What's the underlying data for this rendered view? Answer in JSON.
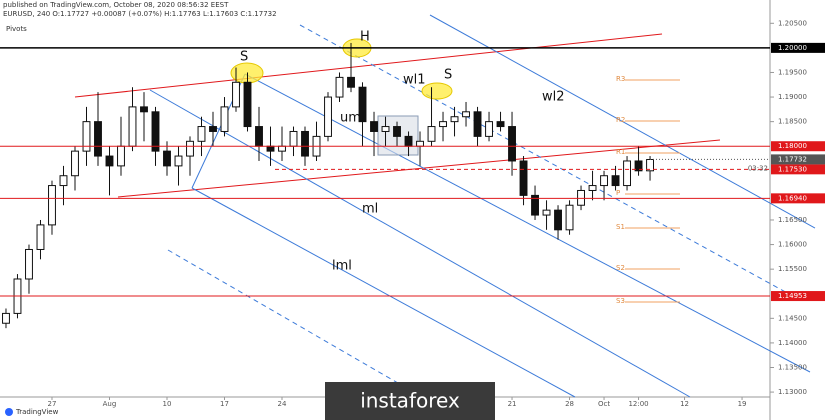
{
  "chart_data": {
    "type": "candlestick",
    "published": "published on TradingView.com, October 08, 2020 08:56:32 EEST",
    "symbol": "EURUSD, 240  O:1.17727 +0.00087 (+0.07%) H:1.17763 L:1.17603 C:1.17732",
    "pivots_label": "Pivots",
    "annotations": [
      "S",
      "H",
      "S",
      "wl1",
      "wl2",
      "uml",
      "ml",
      "lml"
    ],
    "pivot_names": [
      "R3",
      "R2",
      "R1",
      "P",
      "S1",
      "S2",
      "S3"
    ],
    "logo": "TradingView",
    "watermark": "instaforex",
    "countdown": "03:32",
    "open": [
      1.144,
      1.146,
      1.153,
      1.159,
      1.164,
      1.172,
      1.174,
      1.179,
      1.185,
      1.178,
      1.176,
      1.18,
      1.188,
      1.187,
      1.179,
      1.176,
      1.178,
      1.181,
      1.184,
      1.183,
      1.188,
      1.193,
      1.184,
      1.18,
      1.179,
      1.18,
      1.183,
      1.178,
      1.182,
      1.19,
      1.194,
      1.192,
      1.185,
      1.183,
      1.184,
      1.182,
      1.18,
      1.181,
      1.184,
      1.185,
      1.186,
      1.187,
      1.182,
      1.185,
      1.184,
      1.177,
      1.17,
      1.166,
      1.167,
      1.163,
      1.168,
      1.171,
      1.172,
      1.174,
      1.172,
      1.177,
      1.175
    ],
    "high": [
      1.147,
      1.154,
      1.16,
      1.165,
      1.173,
      1.176,
      1.18,
      1.188,
      1.191,
      1.18,
      1.186,
      1.192,
      1.191,
      1.188,
      1.181,
      1.18,
      1.182,
      1.186,
      1.187,
      1.19,
      1.196,
      1.195,
      1.188,
      1.184,
      1.184,
      1.184,
      1.184,
      1.185,
      1.191,
      1.195,
      1.201,
      1.193,
      1.187,
      1.186,
      1.185,
      1.183,
      1.183,
      1.192,
      1.187,
      1.188,
      1.189,
      1.188,
      1.187,
      1.187,
      1.187,
      1.178,
      1.172,
      1.169,
      1.168,
      1.169,
      1.172,
      1.175,
      1.175,
      1.176,
      1.178,
      1.18,
      1.178
    ],
    "low": [
      1.143,
      1.145,
      1.15,
      1.157,
      1.162,
      1.168,
      1.171,
      1.176,
      1.176,
      1.17,
      1.174,
      1.179,
      1.181,
      1.176,
      1.174,
      1.172,
      1.174,
      1.178,
      1.18,
      1.182,
      1.187,
      1.183,
      1.177,
      1.176,
      1.177,
      1.178,
      1.176,
      1.177,
      1.181,
      1.189,
      1.191,
      1.18,
      1.178,
      1.18,
      1.18,
      1.178,
      1.176,
      1.18,
      1.181,
      1.182,
      1.184,
      1.18,
      1.181,
      1.183,
      1.174,
      1.168,
      1.165,
      1.163,
      1.161,
      1.162,
      1.167,
      1.169,
      1.169,
      1.171,
      1.171,
      1.174,
      1.173
    ],
    "close": [
      1.146,
      1.153,
      1.159,
      1.164,
      1.172,
      1.174,
      1.179,
      1.185,
      1.178,
      1.176,
      1.18,
      1.188,
      1.187,
      1.179,
      1.176,
      1.178,
      1.181,
      1.184,
      1.183,
      1.188,
      1.193,
      1.184,
      1.18,
      1.179,
      1.18,
      1.183,
      1.178,
      1.182,
      1.19,
      1.194,
      1.192,
      1.185,
      1.183,
      1.184,
      1.182,
      1.18,
      1.181,
      1.184,
      1.185,
      1.186,
      1.187,
      1.182,
      1.185,
      1.184,
      1.177,
      1.17,
      1.166,
      1.167,
      1.163,
      1.168,
      1.171,
      1.172,
      1.174,
      1.172,
      1.177,
      1.175,
      1.1773
    ],
    "up_color": "#ffffff",
    "down_color": "#111111",
    "wick_color": "#111111",
    "xlim": [
      -0.52,
      66.43
    ],
    "xticks": [
      {
        "value": 4,
        "label": "27"
      },
      {
        "value": 9,
        "label": "Aug"
      },
      {
        "value": 14,
        "label": "10"
      },
      {
        "value": 19,
        "label": "17"
      },
      {
        "value": 24,
        "label": "24"
      },
      {
        "value": 44,
        "label": "21"
      },
      {
        "value": 49,
        "label": "28"
      },
      {
        "value": 52,
        "label": "Oct"
      },
      {
        "value": 55,
        "label": "12:00"
      },
      {
        "value": 59,
        "label": "12"
      },
      {
        "value": 64,
        "label": "19"
      }
    ],
    "ylim": [
      1.129,
      1.2075
    ],
    "yticks": [
      {
        "value": 1.205,
        "label": "1.20500"
      },
      {
        "value": 1.195,
        "label": "1.19500"
      },
      {
        "value": 1.19,
        "label": "1.19000"
      },
      {
        "value": 1.185,
        "label": "1.18500"
      },
      {
        "value": 1.165,
        "label": "1.16500"
      },
      {
        "value": 1.16,
        "label": "1.16000"
      },
      {
        "value": 1.155,
        "label": "1.15500"
      },
      {
        "value": 1.145,
        "label": "1.14500"
      },
      {
        "value": 1.14,
        "label": "1.14000"
      },
      {
        "value": 1.135,
        "label": "1.13500"
      },
      {
        "value": 1.13,
        "label": "1.13000"
      }
    ],
    "levels": [
      {
        "value": 1.2,
        "label": "1.20000",
        "color": "#000000",
        "style": "solid"
      },
      {
        "value": 1.18,
        "label": "1.18000",
        "color": "#e0181b",
        "style": "solid"
      },
      {
        "value": 1.1753,
        "label": "1.17530",
        "color": "#e0181b",
        "style": "dashed"
      },
      {
        "value": 1.1694,
        "label": "1.16940",
        "color": "#e0181b",
        "style": "solid"
      },
      {
        "value": 1.14953,
        "label": "1.14953",
        "color": "#e0181b",
        "style": "solid"
      }
    ],
    "last_price": {
      "value": 1.17732,
      "label": "1.17732",
      "color": "#555555"
    }
  }
}
